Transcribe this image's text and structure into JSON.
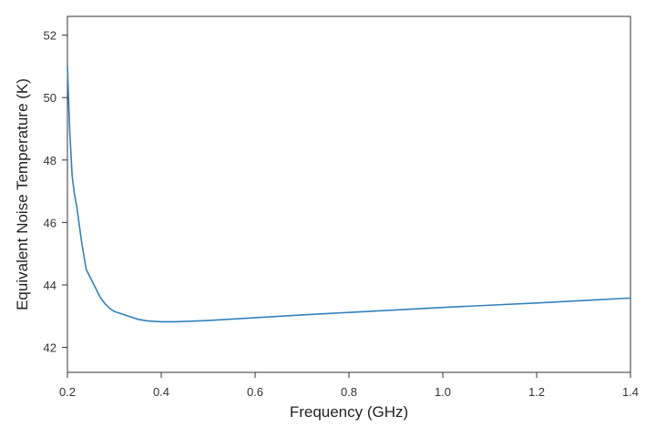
{
  "chart_data": {
    "type": "line",
    "title": "",
    "xlabel": "Frequency (GHz)",
    "ylabel": "Equivalent Noise Temperature (K)",
    "xlim": [
      0.2,
      1.4
    ],
    "ylim": [
      41.2,
      52.6
    ],
    "xticks": [
      "0.2",
      "0.4",
      "0.6",
      "0.8",
      "1.0",
      "1.2",
      "1.4"
    ],
    "yticks": [
      "42",
      "44",
      "46",
      "48",
      "50",
      "52"
    ],
    "grid": false,
    "legend": "none",
    "line_color": "#3182bd",
    "series": [
      {
        "x": [
          0.2,
          0.205,
          0.21,
          0.215,
          0.22,
          0.23,
          0.24,
          0.25,
          0.26,
          0.27,
          0.28,
          0.29,
          0.3,
          0.32,
          0.35,
          0.37,
          0.4,
          0.43,
          0.5,
          0.6,
          0.7,
          0.8,
          0.9,
          1.0,
          1.1,
          1.2,
          1.3,
          1.4
        ],
        "y": [
          51.0,
          48.9,
          47.5,
          46.9,
          46.5,
          45.4,
          44.5,
          44.2,
          43.9,
          43.6,
          43.4,
          43.25,
          43.15,
          43.05,
          42.9,
          42.85,
          42.82,
          42.82,
          42.86,
          42.95,
          43.04,
          43.12,
          43.2,
          43.28,
          43.35,
          43.42,
          43.5,
          43.58
        ]
      }
    ]
  }
}
